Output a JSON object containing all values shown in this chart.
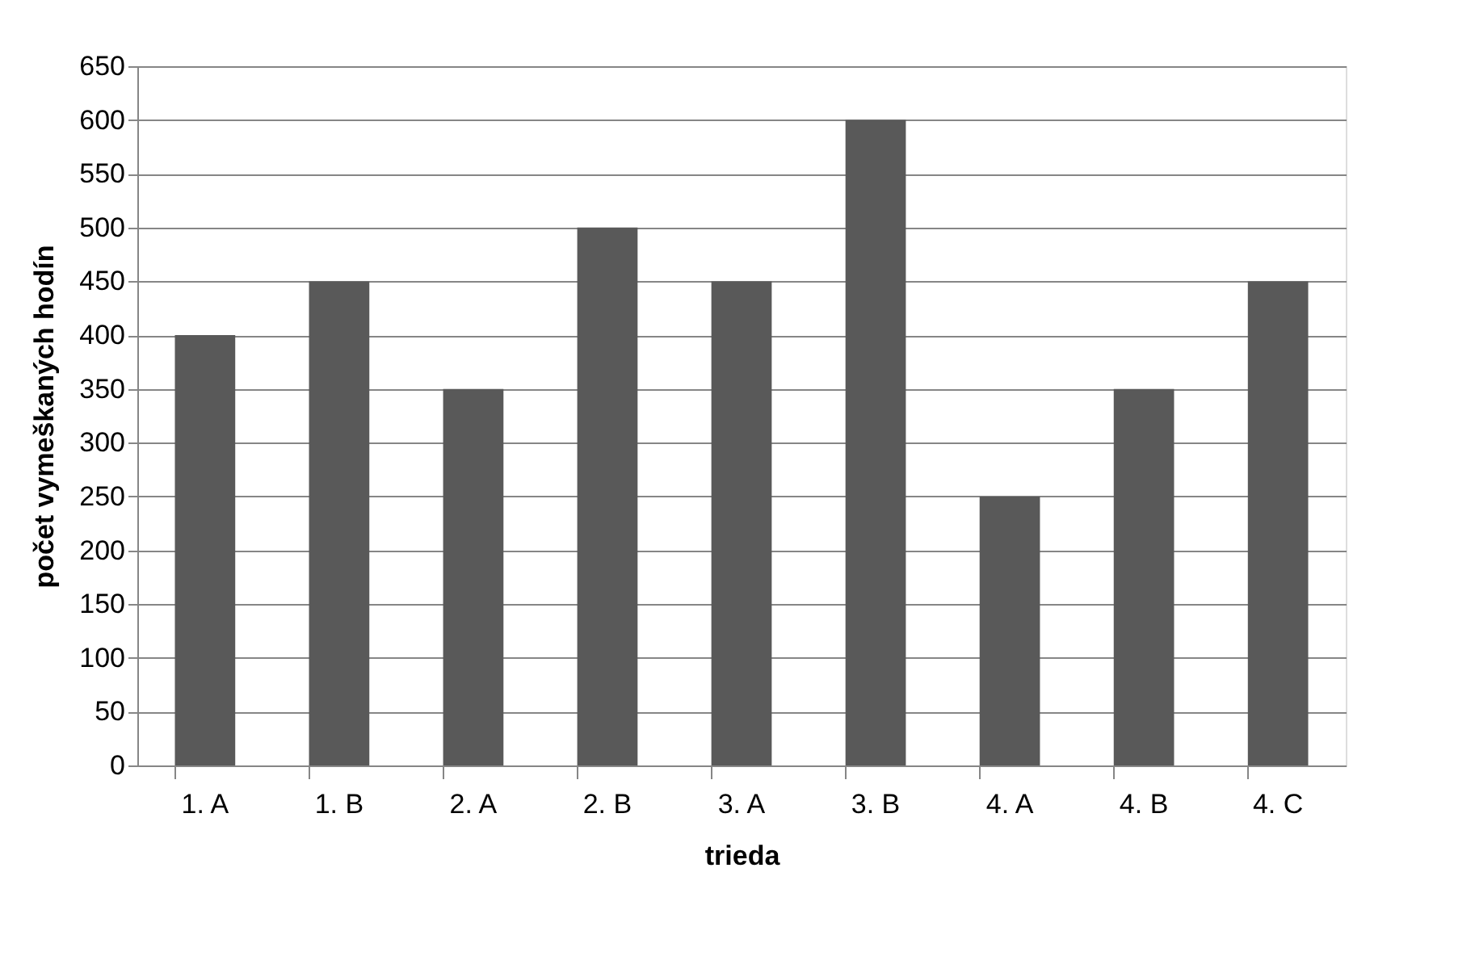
{
  "chart_data": {
    "type": "bar",
    "xlabel": "trieda",
    "ylabel": "počet vymeškaných hodín",
    "categories": [
      "1. A",
      "1. B",
      "2. A",
      "2. B",
      "3. A",
      "3. B",
      "4. A",
      "4. B",
      "4. C"
    ],
    "values": [
      400,
      450,
      350,
      500,
      450,
      600,
      250,
      350,
      450
    ],
    "color": "#595959",
    "ylim": [
      0,
      650
    ],
    "yticks": [
      0,
      50,
      100,
      150,
      200,
      250,
      300,
      350,
      400,
      450,
      500,
      550,
      600,
      650
    ],
    "grid": "y"
  }
}
